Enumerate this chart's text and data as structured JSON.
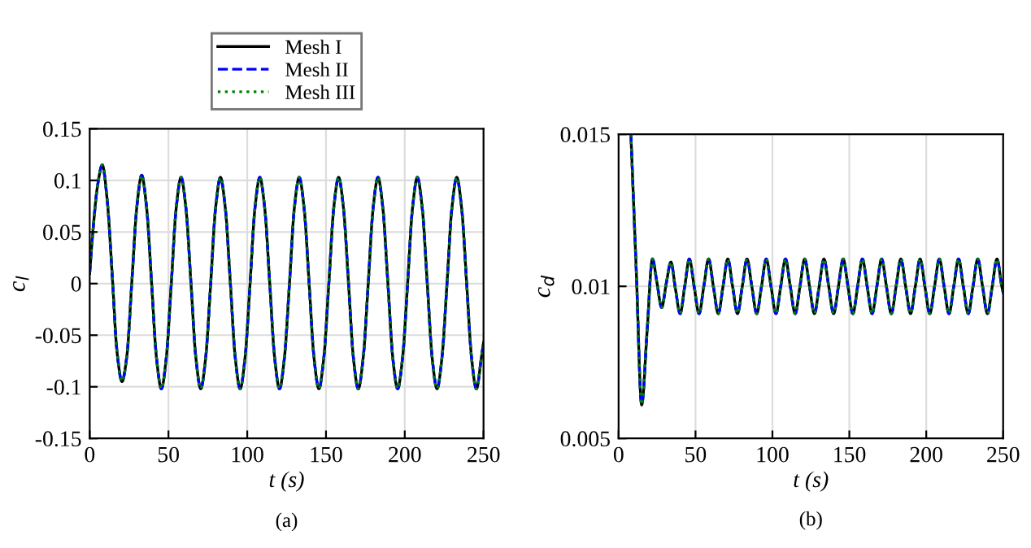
{
  "chart_data": [
    {
      "type": "line",
      "xlabel": "t (s)",
      "ylabel": "c$_{l}$",
      "annotations": [
        "(a)"
      ],
      "xlim": [
        0,
        250
      ],
      "xticks": [
        0,
        50,
        100,
        150,
        200,
        250
      ],
      "ylim": [
        -0.15,
        0.15
      ],
      "yticks": [
        -0.15,
        -0.1,
        -0.05,
        0,
        0.05,
        0.1,
        0.15
      ],
      "grid": true,
      "legend": "top",
      "marker": "none",
      "x": [
        0,
        2,
        5,
        8,
        11.1,
        14.3,
        17.4,
        20.5,
        23.6,
        26.8,
        29.9,
        33,
        36.1,
        39.3,
        42.4,
        45.5,
        48.6,
        51.8,
        54.9,
        58,
        61.1,
        64.3,
        67.4,
        70.5,
        73.6,
        76.8,
        79.9,
        83,
        86.1,
        89.3,
        92.4,
        95.5,
        98.6,
        101.8,
        104.9,
        108,
        111.1,
        114.3,
        117.4,
        120.5,
        123.6,
        126.8,
        129.9,
        133,
        136.1,
        139.3,
        142.4,
        145.5,
        148.6,
        151.8,
        154.9,
        158,
        161.1,
        164.3,
        167.4,
        170.5,
        173.6,
        176.8,
        179.9,
        183,
        186.1,
        189.3,
        192.4,
        195.5,
        198.6,
        201.8,
        204.9,
        208,
        211.1,
        214.3,
        217.4,
        220.5,
        223.6,
        226.8,
        229.9,
        233,
        236.1,
        239.3,
        242.4,
        245.5,
        248.6,
        250
      ],
      "series": [
        {
          "name": "Mesh I",
          "color": "#000000",
          "line_style": "solid",
          "values": [
            0.01,
            0.05,
            0.095,
            0.115,
            0.081,
            0.008,
            -0.067,
            -0.095,
            -0.07,
            0.003,
            0.074,
            0.105,
            0.074,
            0,
            -0.072,
            -0.102,
            -0.072,
            0,
            0.073,
            0.103,
            0.073,
            0,
            -0.072,
            -0.102,
            -0.072,
            0,
            0.073,
            0.103,
            0.073,
            0,
            -0.072,
            -0.102,
            -0.072,
            0,
            0.073,
            0.103,
            0.073,
            0,
            -0.072,
            -0.102,
            -0.072,
            0,
            0.073,
            0.103,
            0.073,
            0,
            -0.072,
            -0.102,
            -0.072,
            0,
            0.073,
            0.103,
            0.073,
            0,
            -0.072,
            -0.102,
            -0.072,
            0,
            0.073,
            0.103,
            0.073,
            0,
            -0.072,
            -0.102,
            -0.072,
            0,
            0.073,
            0.103,
            0.073,
            0,
            -0.072,
            -0.102,
            -0.072,
            0,
            0.073,
            0.103,
            0.073,
            0,
            -0.072,
            -0.102,
            -0.072,
            -0.057
          ]
        },
        {
          "name": "Mesh II",
          "color": "#0000ff",
          "line_style": "dashed",
          "values": [
            0.01,
            0.05,
            0.095,
            0.115,
            0.081,
            0.008,
            -0.067,
            -0.095,
            -0.07,
            0.003,
            0.074,
            0.105,
            0.074,
            0,
            -0.072,
            -0.102,
            -0.072,
            0,
            0.073,
            0.103,
            0.073,
            0,
            -0.072,
            -0.102,
            -0.072,
            0,
            0.073,
            0.103,
            0.073,
            0,
            -0.072,
            -0.102,
            -0.072,
            0,
            0.073,
            0.103,
            0.073,
            0,
            -0.072,
            -0.102,
            -0.072,
            0,
            0.073,
            0.103,
            0.073,
            0,
            -0.072,
            -0.102,
            -0.072,
            0,
            0.073,
            0.103,
            0.073,
            0,
            -0.072,
            -0.102,
            -0.072,
            0,
            0.073,
            0.103,
            0.073,
            0,
            -0.072,
            -0.102,
            -0.072,
            0,
            0.073,
            0.103,
            0.073,
            0,
            -0.072,
            -0.102,
            -0.072,
            0,
            0.073,
            0.103,
            0.073,
            0,
            -0.072,
            -0.102,
            -0.072,
            -0.057
          ]
        },
        {
          "name": "Mesh III",
          "color": "#008000",
          "line_style": "dotted",
          "values": [
            0.01,
            0.05,
            0.095,
            0.115,
            0.081,
            0.008,
            -0.067,
            -0.095,
            -0.07,
            0.003,
            0.074,
            0.105,
            0.074,
            0,
            -0.072,
            -0.102,
            -0.072,
            0,
            0.073,
            0.103,
            0.073,
            0,
            -0.072,
            -0.102,
            -0.072,
            0,
            0.073,
            0.103,
            0.073,
            0,
            -0.072,
            -0.102,
            -0.072,
            0,
            0.073,
            0.103,
            0.073,
            0,
            -0.072,
            -0.102,
            -0.072,
            0,
            0.073,
            0.103,
            0.073,
            0,
            -0.072,
            -0.102,
            -0.072,
            0,
            0.073,
            0.103,
            0.073,
            0,
            -0.072,
            -0.102,
            -0.072,
            0,
            0.073,
            0.103,
            0.073,
            0,
            -0.072,
            -0.102,
            -0.072,
            0,
            0.073,
            0.103,
            0.073,
            0,
            -0.072,
            -0.102,
            -0.072,
            0,
            0.073,
            0.103,
            0.073,
            0,
            -0.072,
            -0.102,
            -0.072,
            -0.057
          ]
        }
      ]
    },
    {
      "type": "line",
      "xlabel": "t (s)",
      "ylabel": "c$_{d}$",
      "annotations": [
        "(b)"
      ],
      "xlim": [
        0,
        250
      ],
      "xticks": [
        0,
        50,
        100,
        150,
        200,
        250
      ],
      "ylim": [
        0.005,
        0.015
      ],
      "yticks": [
        0.005,
        0.01,
        0.015
      ],
      "grid": true,
      "marker": "none",
      "x": [
        8,
        11.5,
        15,
        18.5,
        22,
        25,
        28,
        31,
        34,
        37,
        40,
        43,
        46,
        49.1,
        52.3,
        55.4,
        58.5,
        61.6,
        64.8,
        67.9,
        71,
        74.1,
        77.3,
        80.4,
        83.5,
        86.6,
        89.8,
        92.9,
        96,
        99.1,
        102.3,
        105.4,
        108.5,
        111.6,
        114.8,
        117.9,
        121,
        124.1,
        127.3,
        130.4,
        133.5,
        136.6,
        139.8,
        142.9,
        146,
        149.1,
        152.3,
        155.4,
        158.5,
        161.6,
        164.8,
        167.9,
        171,
        174.1,
        177.3,
        180.4,
        183.5,
        186.6,
        189.8,
        192.9,
        196,
        199.1,
        202.3,
        205.4,
        208.5,
        211.6,
        214.8,
        217.9,
        221,
        224.1,
        227.3,
        230.4,
        233.5,
        236.6,
        239.8,
        242.9,
        246,
        249.1,
        250
      ],
      "series": [
        {
          "color": "#000000",
          "line_style": "solid",
          "values": [
            0.015,
            0.0105,
            0.0061,
            0.0085,
            0.0109,
            0.0101,
            0.0093,
            0.0101,
            0.0108,
            0.0099,
            0.0091,
            0.01,
            0.0109,
            0.01,
            0.0091,
            0.01,
            0.0109,
            0.01,
            0.0091,
            0.01,
            0.0109,
            0.01,
            0.0091,
            0.01,
            0.0109,
            0.01,
            0.0091,
            0.01,
            0.0109,
            0.01,
            0.0091,
            0.01,
            0.0109,
            0.01,
            0.0091,
            0.01,
            0.0109,
            0.01,
            0.0091,
            0.01,
            0.0109,
            0.01,
            0.0091,
            0.01,
            0.0109,
            0.01,
            0.0091,
            0.01,
            0.0109,
            0.01,
            0.0091,
            0.01,
            0.0109,
            0.01,
            0.0091,
            0.01,
            0.0109,
            0.01,
            0.0091,
            0.01,
            0.0109,
            0.01,
            0.0091,
            0.01,
            0.0109,
            0.01,
            0.0091,
            0.01,
            0.0109,
            0.01,
            0.0091,
            0.01,
            0.0109,
            0.01,
            0.0091,
            0.01,
            0.0109,
            0.01,
            0.0098
          ]
        },
        {
          "color": "#0000ff",
          "line_style": "dashed",
          "values": [
            0.015,
            0.0105,
            0.0061,
            0.0085,
            0.0109,
            0.0101,
            0.0093,
            0.0101,
            0.0108,
            0.0099,
            0.0091,
            0.01,
            0.0109,
            0.01,
            0.0091,
            0.01,
            0.0109,
            0.01,
            0.0091,
            0.01,
            0.0109,
            0.01,
            0.0091,
            0.01,
            0.0109,
            0.01,
            0.0091,
            0.01,
            0.0109,
            0.01,
            0.0091,
            0.01,
            0.0109,
            0.01,
            0.0091,
            0.01,
            0.0109,
            0.01,
            0.0091,
            0.01,
            0.0109,
            0.01,
            0.0091,
            0.01,
            0.0109,
            0.01,
            0.0091,
            0.01,
            0.0109,
            0.01,
            0.0091,
            0.01,
            0.0109,
            0.01,
            0.0091,
            0.01,
            0.0109,
            0.01,
            0.0091,
            0.01,
            0.0109,
            0.01,
            0.0091,
            0.01,
            0.0109,
            0.01,
            0.0091,
            0.01,
            0.0109,
            0.01,
            0.0091,
            0.01,
            0.0109,
            0.01,
            0.0091,
            0.01,
            0.0109,
            0.01,
            0.0098
          ]
        },
        {
          "color": "#008000",
          "line_style": "dotted",
          "values": [
            0.015,
            0.0105,
            0.0061,
            0.0085,
            0.0109,
            0.0101,
            0.0093,
            0.0101,
            0.0108,
            0.0099,
            0.0091,
            0.01,
            0.0109,
            0.01,
            0.0091,
            0.01,
            0.0109,
            0.01,
            0.0091,
            0.01,
            0.0109,
            0.01,
            0.0091,
            0.01,
            0.0109,
            0.01,
            0.0091,
            0.01,
            0.0109,
            0.01,
            0.0091,
            0.01,
            0.0109,
            0.01,
            0.0091,
            0.01,
            0.0109,
            0.01,
            0.0091,
            0.01,
            0.0109,
            0.01,
            0.0091,
            0.01,
            0.0109,
            0.01,
            0.0091,
            0.01,
            0.0109,
            0.01,
            0.0091,
            0.01,
            0.0109,
            0.01,
            0.0091,
            0.01,
            0.0109,
            0.01,
            0.0091,
            0.01,
            0.0109,
            0.01,
            0.0091,
            0.01,
            0.0109,
            0.01,
            0.0091,
            0.01,
            0.0109,
            0.01,
            0.0091,
            0.01,
            0.0109,
            0.01,
            0.0091,
            0.01,
            0.0109,
            0.01,
            0.0098
          ]
        }
      ]
    }
  ]
}
